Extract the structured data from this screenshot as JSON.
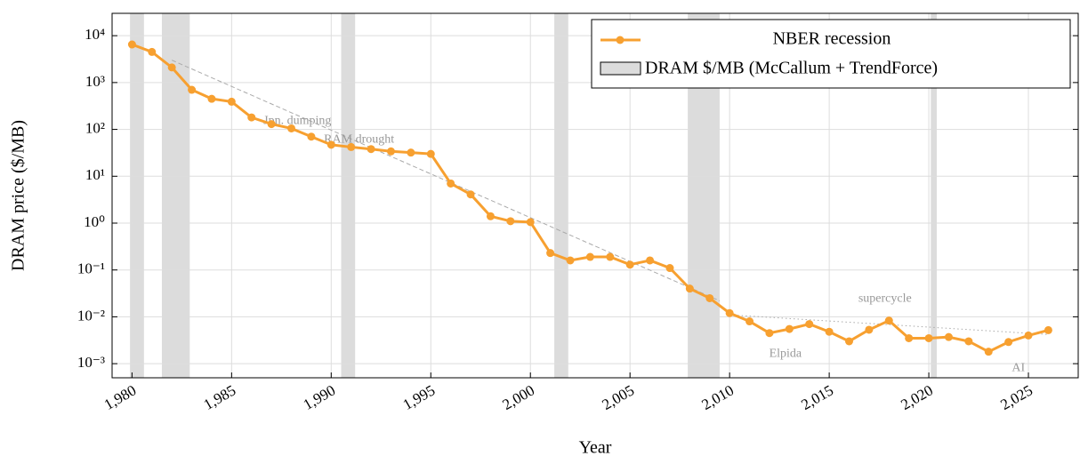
{
  "chart_data": {
    "type": "line",
    "xlabel": "Year",
    "ylabel": "DRAM price ($/MB)",
    "x": [
      1980,
      1981,
      1982,
      1983,
      1984,
      1985,
      1986,
      1987,
      1988,
      1989,
      1990,
      1991,
      1992,
      1993,
      1994,
      1995,
      1996,
      1997,
      1998,
      1999,
      2000,
      2001,
      2002,
      2003,
      2004,
      2005,
      2006,
      2007,
      2008,
      2009,
      2010,
      2011,
      2012,
      2013,
      2014,
      2015,
      2016,
      2017,
      2018,
      2019,
      2020,
      2021,
      2022,
      2023,
      2024,
      2025,
      2026
    ],
    "series": [
      {
        "name": "NBER recession",
        "color": "#f7a030",
        "values": [
          6500,
          4500,
          2100,
          700,
          450,
          390,
          180,
          130,
          105,
          70,
          47,
          42,
          38,
          34,
          32,
          30,
          7,
          4.1,
          1.4,
          1.1,
          1.05,
          0.23,
          0.16,
          0.19,
          0.19,
          0.13,
          0.16,
          0.11,
          0.04,
          0.025,
          0.012,
          0.008,
          0.0045,
          0.0055,
          0.007,
          0.0048,
          0.003,
          0.0053,
          0.0083,
          0.0035,
          0.0035,
          0.0037,
          0.003,
          0.0018,
          0.0029,
          0.004,
          0.0052
        ]
      }
    ],
    "bands": {
      "name": "DRAM $/MB (McCallum + TrendForce)",
      "color": "#dcdcdc",
      "ranges": [
        [
          1979.9,
          1980.6
        ],
        [
          1981.5,
          1982.9
        ],
        [
          1990.5,
          1991.2
        ],
        [
          2001.2,
          2001.9
        ],
        [
          2007.9,
          2009.5
        ],
        [
          2020.1,
          2020.4
        ]
      ]
    },
    "trendlines": [
      {
        "x": [
          1982,
          2009.5
        ],
        "values": [
          3000,
          0.022
        ],
        "style": "dashed"
      },
      {
        "x": [
          2010,
          2026
        ],
        "values": [
          0.011,
          0.0042
        ],
        "style": "dotted"
      }
    ],
    "annotations": [
      {
        "text": "Jpn. dumping",
        "x": 1988.3,
        "y": 150
      },
      {
        "text": "RAM drought",
        "x": 1991.4,
        "y": 60
      },
      {
        "text": "supercycle",
        "x": 2017.8,
        "y": 0.024
      },
      {
        "text": "Elpida",
        "x": 2012.8,
        "y": 0.0016
      },
      {
        "text": "AI",
        "x": 2024.5,
        "y": 0.0008
      }
    ],
    "xlim": [
      1979,
      2027.5
    ],
    "ylim": [
      0.0005,
      30000
    ],
    "ylog": true,
    "grid": true,
    "legend": "upper right",
    "xticks": [
      {
        "value": 1980,
        "label": "1,980"
      },
      {
        "value": 1985,
        "label": "1,985"
      },
      {
        "value": 1990,
        "label": "1,990"
      },
      {
        "value": 1995,
        "label": "1,995"
      },
      {
        "value": 2000,
        "label": "2,000"
      },
      {
        "value": 2005,
        "label": "2,005"
      },
      {
        "value": 2010,
        "label": "2,010"
      },
      {
        "value": 2015,
        "label": "2,015"
      },
      {
        "value": 2020,
        "label": "2,020"
      },
      {
        "value": 2025,
        "label": "2,025"
      }
    ],
    "yticks": [
      {
        "value": 0.001,
        "label": "10⁻³"
      },
      {
        "value": 0.01,
        "label": "10⁻²"
      },
      {
        "value": 0.1,
        "label": "10⁻¹"
      },
      {
        "value": 1,
        "label": "10⁰"
      },
      {
        "value": 10,
        "label": "10¹"
      },
      {
        "value": 100,
        "label": "10²"
      },
      {
        "value": 1000,
        "label": "10³"
      },
      {
        "value": 10000,
        "label": "10⁴"
      }
    ]
  }
}
